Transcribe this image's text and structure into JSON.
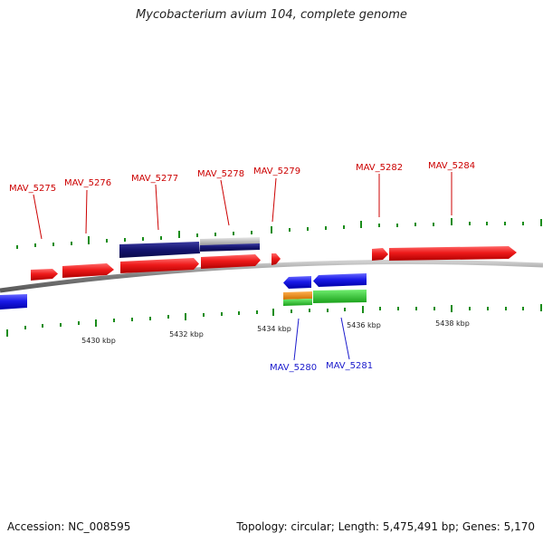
{
  "title": "Mycobacterium avium 104, complete genome",
  "footer": {
    "accession": "Accession: NC_008595",
    "topology": "Topology: circular; Length: 5,475,491 bp; Genes: 5,170"
  },
  "colors": {
    "forward_gene": "#e81010",
    "reverse_gene": "#1a1adf",
    "label_forward": "#cc0000",
    "label_reverse": "#1a1acc",
    "tick": "#1a8c1a",
    "backbone": "#888888",
    "feature_navy": "#14146e",
    "feature_silver": "#b8b8b8",
    "feature_orange": "#f08c14",
    "feature_green": "#2ecc2e"
  },
  "scale_labels": [
    "5430 kbp",
    "5432 kbp",
    "5434 kbp",
    "5436 kbp",
    "5438 kbp"
  ],
  "gene_labels": {
    "forward": [
      "MAV_5275",
      "MAV_5276",
      "MAV_5277",
      "MAV_5278",
      "MAV_5279",
      "MAV_5282",
      "MAV_5284"
    ],
    "reverse": [
      "MAV_5280",
      "MAV_5281"
    ]
  }
}
